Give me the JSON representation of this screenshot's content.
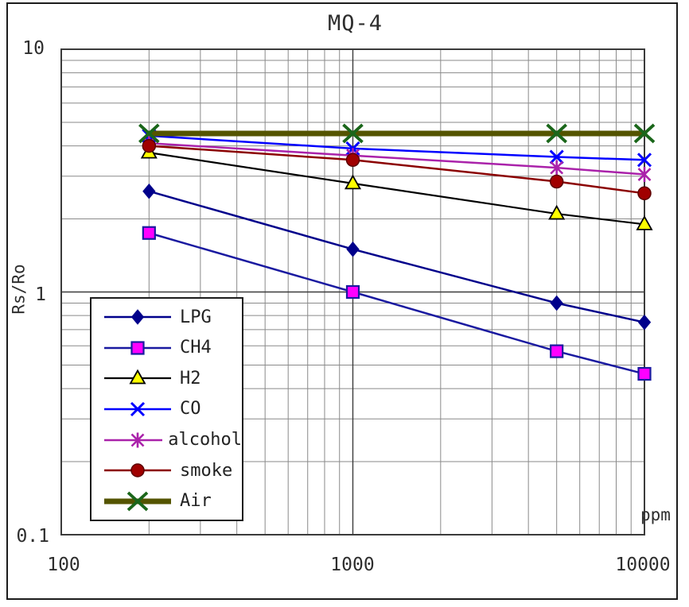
{
  "chart_data": {
    "type": "line",
    "title": "MQ-4",
    "xlabel": "ppm",
    "ylabel": "Rs/Ro",
    "x_scale": "log",
    "y_scale": "log",
    "xlim": [
      100,
      10000
    ],
    "ylim": [
      0.1,
      10
    ],
    "x_tick_labels": [
      "100",
      "1000",
      "10000"
    ],
    "y_tick_labels": [
      "10",
      "1",
      "0.1"
    ],
    "grid": true,
    "legend_position": "left-middle",
    "x": [
      200,
      1000,
      5000,
      10000
    ],
    "series": [
      {
        "name": "LPG",
        "color": "#00008B",
        "marker": "diamond",
        "marker_fill": "#00008B",
        "line_width": 2.5,
        "values": [
          2.6,
          1.5,
          0.9,
          0.75
        ]
      },
      {
        "name": "CH4",
        "color": "#1a1aa0",
        "marker": "square",
        "marker_fill": "#FF00FF",
        "line_width": 2.5,
        "values": [
          1.75,
          1.0,
          0.57,
          0.46
        ]
      },
      {
        "name": "H2",
        "color": "#000000",
        "marker": "triangle",
        "marker_fill": "#FFFF00",
        "line_width": 2.2,
        "values": [
          3.75,
          2.8,
          2.1,
          1.9
        ]
      },
      {
        "name": "CO",
        "color": "#0000FF",
        "marker": "x",
        "marker_fill": "#0000FF",
        "line_width": 2.5,
        "values": [
          4.4,
          3.9,
          3.6,
          3.5
        ]
      },
      {
        "name": "alcohol",
        "color": "#AA22AA",
        "marker": "asterisk",
        "marker_fill": "#AA22AA",
        "line_width": 2.5,
        "values": [
          4.1,
          3.65,
          3.25,
          3.05
        ]
      },
      {
        "name": "smoke",
        "color": "#8B0000",
        "marker": "circle",
        "marker_fill": "#A00000",
        "line_width": 2.5,
        "values": [
          4.0,
          3.5,
          2.85,
          2.55
        ]
      },
      {
        "name": "Air",
        "color": "#545400",
        "marker": "air-x",
        "marker_fill": "#1a661a",
        "line_width": 7,
        "values": [
          4.5,
          4.5,
          4.5,
          4.5
        ]
      }
    ],
    "grid_minor_color": "#8a8a8a",
    "grid_major_color": "#3b3b3b"
  }
}
